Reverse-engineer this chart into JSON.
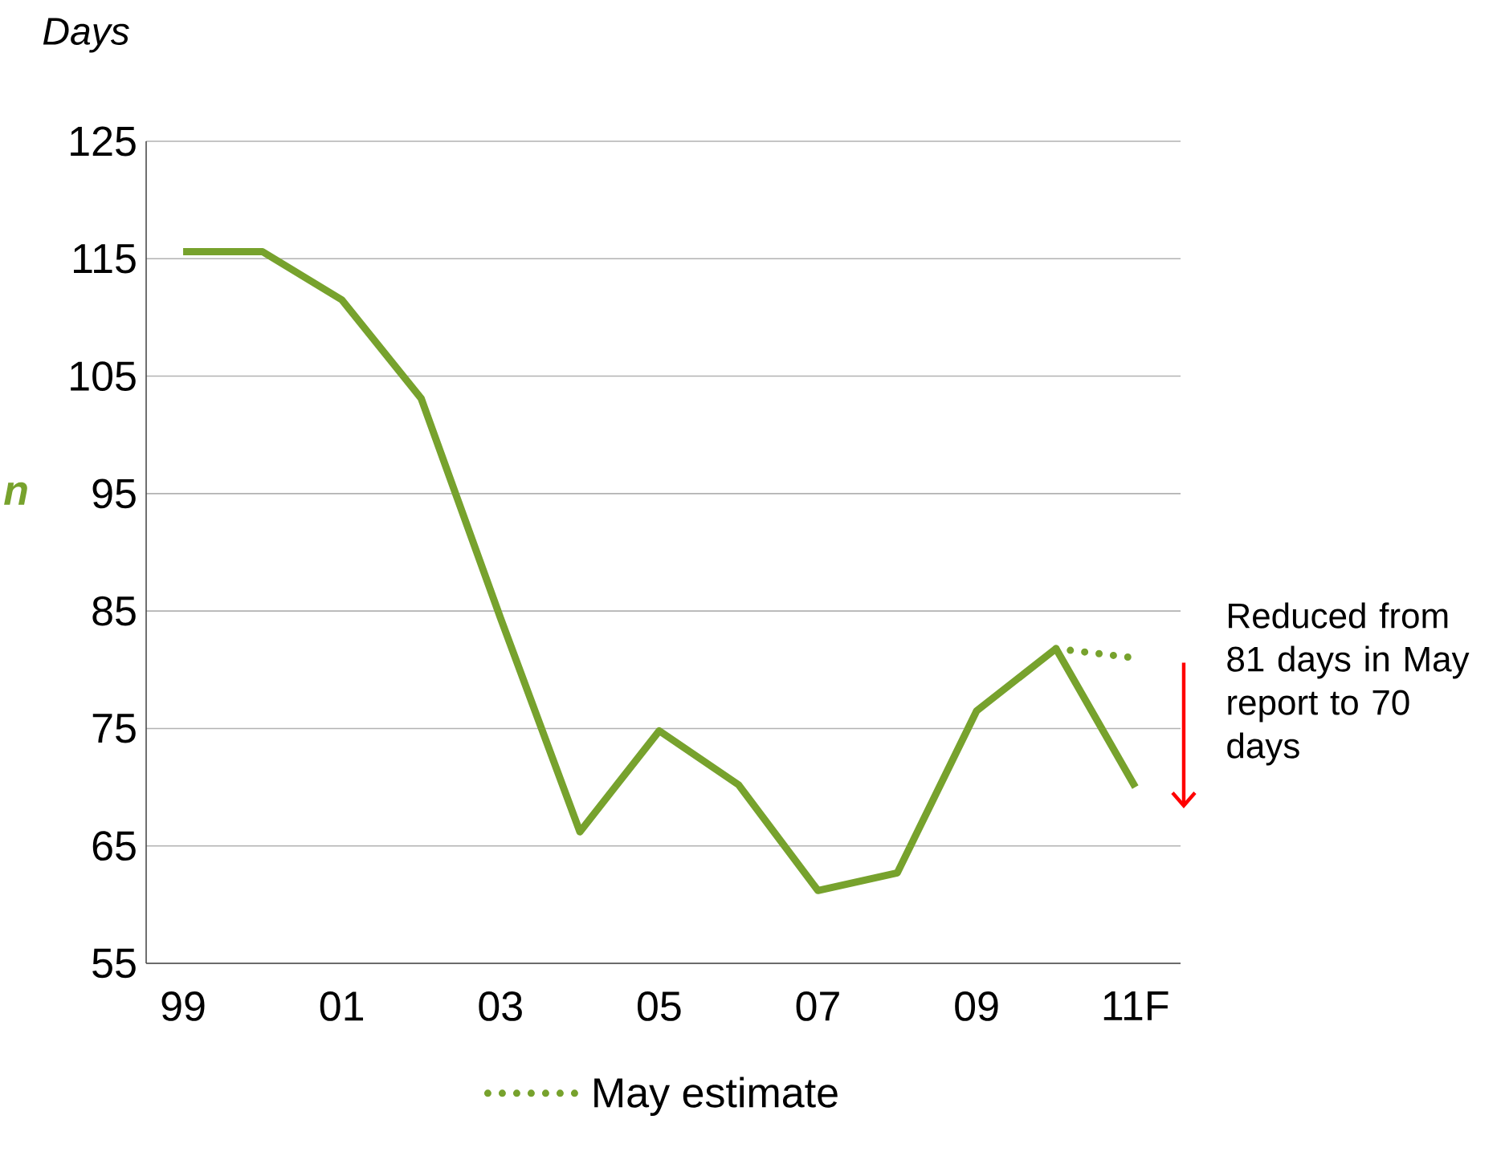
{
  "chart_data": {
    "type": "line",
    "ylabel": "Days",
    "categories": [
      "99",
      null,
      "01",
      null,
      "03",
      null,
      "05",
      null,
      "07",
      null,
      "09",
      null,
      "11F"
    ],
    "series": [
      {
        "color": "#77a22d",
        "line_style": "solid",
        "values": [
          115.6,
          115.6,
          111.5,
          103.1,
          84.4,
          66.2,
          74.8,
          70.2,
          61.2,
          62.7,
          76.5,
          81.8,
          70
        ]
      },
      {
        "name": "May estimate",
        "color": "#77a22d",
        "line_style": "dotted",
        "values": [
          null,
          null,
          null,
          null,
          null,
          null,
          null,
          null,
          null,
          null,
          null,
          81.8,
          81
        ]
      }
    ],
    "ylim": [
      55,
      125
    ],
    "yticks": [
      55,
      65,
      75,
      85,
      95,
      105,
      115,
      125
    ],
    "grid": "y",
    "legend": "bottom",
    "marker": "none",
    "annotations": [
      "n",
      "Reduced from 81 days in May report to 70 days"
    ]
  }
}
